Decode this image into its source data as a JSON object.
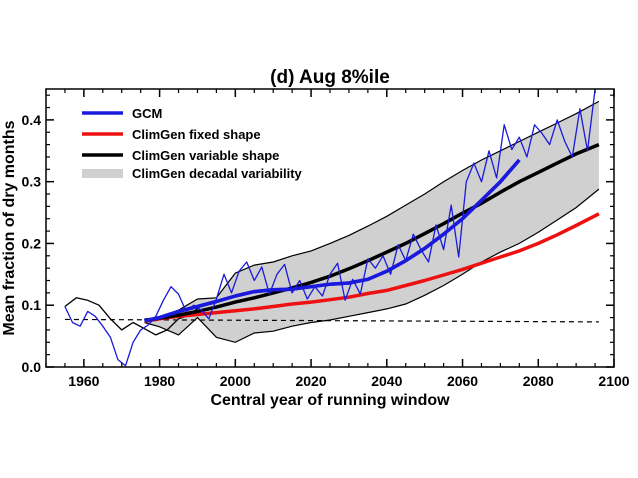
{
  "chart_data": {
    "type": "line",
    "title": "(d) Aug 8%ile",
    "xlabel": "Central year of running window",
    "ylabel": "Mean fraction of dry months",
    "xlim": [
      1950,
      2100
    ],
    "ylim": [
      0.0,
      0.45
    ],
    "xticks": [
      1960,
      1980,
      2000,
      2020,
      2040,
      2060,
      2080,
      2100
    ],
    "yticks": [
      0.0,
      0.1,
      0.2,
      0.3,
      0.4
    ],
    "xtick_labels": [
      "1960",
      "1980",
      "2000",
      "2020",
      "2040",
      "2060",
      "2080",
      "2100"
    ],
    "ytick_labels": [
      "0.0",
      "0.1",
      "0.2",
      "0.3",
      "0.4"
    ],
    "legend_position": "top-left",
    "legend": [
      {
        "name": "GCM",
        "color": "#1a1adc"
      },
      {
        "name": "ClimGen fixed shape",
        "color": "#ee1111"
      },
      {
        "name": "ClimGen variable shape",
        "color": "#000000"
      },
      {
        "name": "ClimGen decadal variability",
        "color": "#d0d0d0"
      }
    ],
    "baseline": {
      "style": "dashed",
      "x": [
        1955,
        2096
      ],
      "y": [
        0.077,
        0.073
      ]
    },
    "band": {
      "name": "ClimGen decadal variability",
      "color": "#d0d0d0",
      "x": [
        1976,
        1980,
        1985,
        1990,
        1995,
        2000,
        2005,
        2010,
        2015,
        2020,
        2025,
        2030,
        2035,
        2040,
        2045,
        2050,
        2055,
        2060,
        2065,
        2070,
        2075,
        2080,
        2085,
        2090,
        2096
      ],
      "upper": [
        0.078,
        0.08,
        0.092,
        0.11,
        0.112,
        0.152,
        0.165,
        0.17,
        0.18,
        0.188,
        0.2,
        0.213,
        0.228,
        0.244,
        0.262,
        0.28,
        0.3,
        0.318,
        0.335,
        0.35,
        0.365,
        0.38,
        0.395,
        0.41,
        0.43
      ],
      "lower": [
        0.072,
        0.065,
        0.052,
        0.08,
        0.048,
        0.04,
        0.055,
        0.058,
        0.066,
        0.072,
        0.076,
        0.082,
        0.088,
        0.094,
        0.102,
        0.116,
        0.132,
        0.15,
        0.17,
        0.186,
        0.2,
        0.218,
        0.238,
        0.258,
        0.288
      ]
    },
    "series": [
      {
        "name": "GCM (annual)",
        "color": "#1a1adc",
        "x": [
          1955,
          1957,
          1959,
          1961,
          1963,
          1965,
          1967,
          1969,
          1971,
          1973,
          1975,
          1977,
          1979,
          1981,
          1983,
          1985,
          1987,
          1989,
          1991,
          1993,
          1995,
          1997,
          1999,
          2001,
          2003,
          2005,
          2007,
          2009,
          2011,
          2013,
          2015,
          2017,
          2019,
          2021,
          2023,
          2025,
          2027,
          2029,
          2031,
          2033,
          2035,
          2037,
          2039,
          2041,
          2043,
          2045,
          2047,
          2049,
          2051,
          2053,
          2055,
          2057,
          2059,
          2061,
          2063,
          2065,
          2067,
          2069,
          2071,
          2073,
          2075,
          2077,
          2079,
          2081,
          2083,
          2085,
          2087,
          2089,
          2091,
          2093,
          2095,
          2096
        ],
        "y": [
          0.098,
          0.072,
          0.066,
          0.09,
          0.082,
          0.066,
          0.048,
          0.012,
          0.002,
          0.04,
          0.06,
          0.068,
          0.082,
          0.108,
          0.13,
          0.118,
          0.09,
          0.1,
          0.092,
          0.078,
          0.11,
          0.15,
          0.12,
          0.155,
          0.17,
          0.14,
          0.162,
          0.118,
          0.15,
          0.166,
          0.12,
          0.14,
          0.11,
          0.13,
          0.115,
          0.15,
          0.168,
          0.108,
          0.142,
          0.118,
          0.175,
          0.16,
          0.18,
          0.15,
          0.198,
          0.172,
          0.215,
          0.19,
          0.17,
          0.23,
          0.19,
          0.262,
          0.178,
          0.3,
          0.33,
          0.3,
          0.35,
          0.306,
          0.392,
          0.352,
          0.372,
          0.34,
          0.392,
          0.378,
          0.36,
          0.4,
          0.365,
          0.34,
          0.418,
          0.35,
          0.45,
          0.46
        ]
      },
      {
        "name": "GCM (smoothed)",
        "color": "#1a1adc",
        "x": [
          1976,
          1980,
          1985,
          1990,
          1995,
          2000,
          2005,
          2010,
          2015,
          2020,
          2025,
          2030,
          2035,
          2040,
          2045,
          2050,
          2055,
          2060,
          2065,
          2070,
          2075
        ],
        "y": [
          0.075,
          0.08,
          0.09,
          0.098,
          0.106,
          0.115,
          0.122,
          0.125,
          0.126,
          0.13,
          0.134,
          0.136,
          0.142,
          0.155,
          0.172,
          0.192,
          0.215,
          0.24,
          0.27,
          0.3,
          0.335
        ]
      },
      {
        "name": "ClimGen fixed shape",
        "color": "#ee1111",
        "x": [
          1976,
          1980,
          1985,
          1990,
          1995,
          2000,
          2005,
          2010,
          2015,
          2020,
          2025,
          2030,
          2035,
          2040,
          2045,
          2050,
          2055,
          2060,
          2065,
          2070,
          2075,
          2080,
          2085,
          2090,
          2096
        ],
        "y": [
          0.074,
          0.078,
          0.082,
          0.085,
          0.088,
          0.091,
          0.094,
          0.098,
          0.102,
          0.105,
          0.109,
          0.113,
          0.119,
          0.124,
          0.132,
          0.14,
          0.149,
          0.158,
          0.168,
          0.178,
          0.188,
          0.2,
          0.214,
          0.229,
          0.248
        ]
      },
      {
        "name": "ClimGen variable shape",
        "color": "#000000",
        "x": [
          1976,
          1980,
          1985,
          1990,
          1995,
          2000,
          2005,
          2010,
          2015,
          2020,
          2025,
          2030,
          2035,
          2040,
          2045,
          2050,
          2055,
          2060,
          2065,
          2070,
          2075,
          2080,
          2085,
          2090,
          2096
        ],
        "y": [
          0.075,
          0.079,
          0.084,
          0.09,
          0.097,
          0.105,
          0.112,
          0.12,
          0.128,
          0.137,
          0.147,
          0.159,
          0.172,
          0.186,
          0.2,
          0.216,
          0.232,
          0.249,
          0.265,
          0.283,
          0.3,
          0.315,
          0.33,
          0.345,
          0.36
        ]
      },
      {
        "name": "GCM (secondary)",
        "color": "#000000",
        "x": [
          1955,
          1958,
          1961,
          1964,
          1967,
          1970,
          1973,
          1976,
          1979,
          1982,
          1985,
          1988,
          1991
        ],
        "y": [
          0.098,
          0.112,
          0.108,
          0.1,
          0.078,
          0.06,
          0.072,
          0.062,
          0.052,
          0.06,
          0.078,
          0.084,
          0.1
        ]
      }
    ]
  }
}
